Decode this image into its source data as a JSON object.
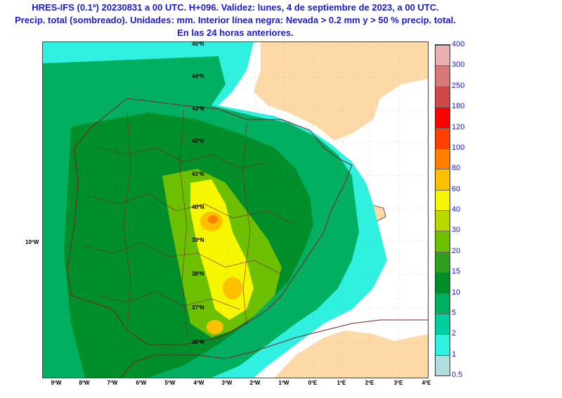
{
  "title": {
    "line1": "HRES-IFS (0.1º) 20230831 a 00 UTC. H+096. Validez: lunes, 4 de septiembre de 2023, a 00 UTC.",
    "line2": "Precip. total (sombreado). Unidades: mm. Interior línea negra: Nevada > 0.2 mm y > 50 % precip. total.",
    "line3": "En las 24 horas anteriores."
  },
  "map": {
    "lat_labels": [
      "45ºN",
      "44ºN",
      "43ºN",
      "42ºN",
      "41ºN",
      "40ºN",
      "39ºN",
      "38ºN",
      "37ºN",
      "36ºN"
    ],
    "lon_labels": [
      "9ºW",
      "8ºW",
      "7ºW",
      "6ºW",
      "5ºW",
      "4ºW",
      "3ºW",
      "2ºW",
      "1ºW",
      "0ºE",
      "1ºE",
      "2ºE",
      "3ºE",
      "4ºE"
    ],
    "side_label": "10ºW"
  },
  "colorbar": {
    "unit": "mm",
    "levels": [
      "0.5",
      "1",
      "2",
      "5",
      "10",
      "15",
      "20",
      "30",
      "40",
      "60",
      "80",
      "100",
      "120",
      "180",
      "250",
      "300",
      "400"
    ],
    "colors": [
      "#b0dde0",
      "#30f0e0",
      "#00d0a0",
      "#00b060",
      "#008e2a",
      "#2ea020",
      "#6cc000",
      "#b8d800",
      "#f6f600",
      "#ffc000",
      "#ff8000",
      "#ff4000",
      "#ff0000",
      "#d04848",
      "#d87878",
      "#e8b0b0"
    ]
  }
}
